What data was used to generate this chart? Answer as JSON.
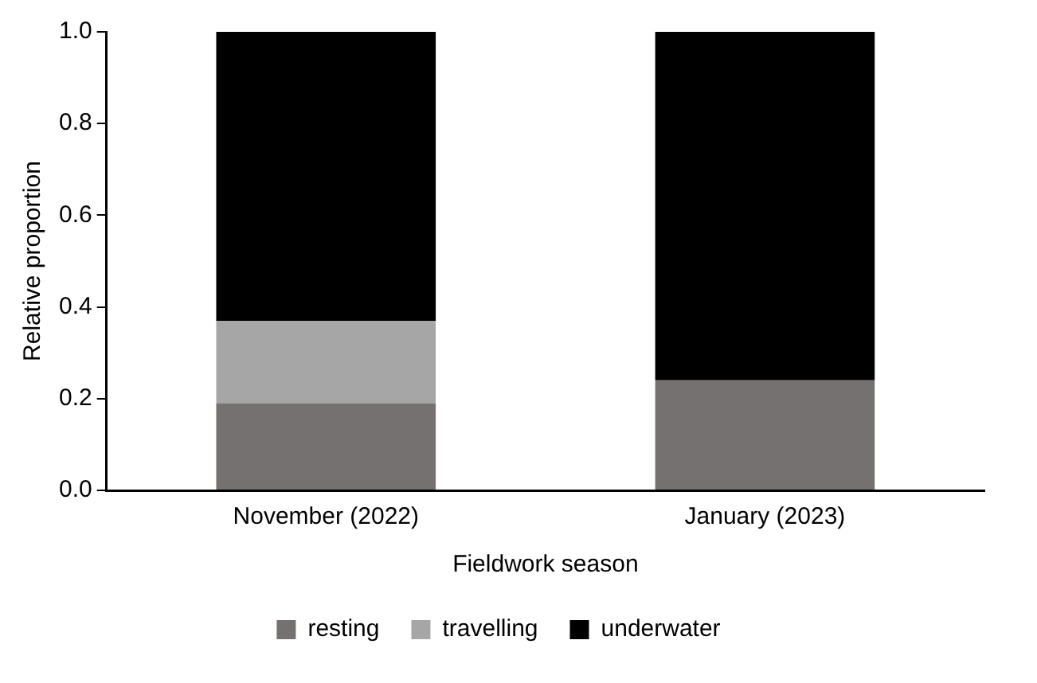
{
  "chart_data": {
    "type": "bar",
    "stacked": true,
    "xlabel": "Fieldwork season",
    "ylabel": "Relative proportion",
    "categories": [
      "November (2022)",
      "January (2023)"
    ],
    "series": [
      {
        "name": "resting",
        "color": "#767171",
        "values": [
          0.19,
          0.24
        ]
      },
      {
        "name": "travelling",
        "color": "#a6a6a6",
        "values": [
          0.18,
          0
        ]
      },
      {
        "name": "underwater",
        "color": "#000000",
        "values": [
          0.63,
          0.76
        ]
      }
    ],
    "ylim": [
      0,
      1
    ],
    "yticks": [
      {
        "value": 0,
        "label": "0.0"
      },
      {
        "value": 0.2,
        "label": "0.2"
      },
      {
        "value": 0.4,
        "label": "0.4"
      },
      {
        "value": 0.6,
        "label": "0.6"
      },
      {
        "value": 0.8,
        "label": "0.8"
      },
      {
        "value": 1,
        "label": "1.0"
      }
    ],
    "grid": false,
    "legend": "bottom"
  }
}
